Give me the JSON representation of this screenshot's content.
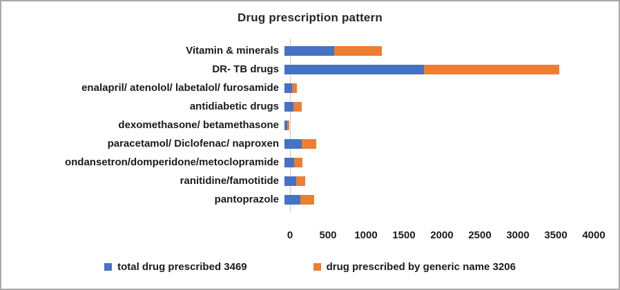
{
  "chart_data": {
    "type": "bar",
    "orientation": "horizontal",
    "stacked": true,
    "title": "Drug prescription pattern",
    "categories": [
      "Vitamin & minerals",
      "DR- TB drugs",
      "enalapril/ atenolol/ labetalol/ furosamide",
      "antidiabetic drugs",
      "dexomethasone/ betamethasone",
      "paracetamol/ Diclofenac/ naproxen",
      "ondansetron/domperidone/metoclopramide",
      "ranitidine/famotitide",
      "pantoprazole"
    ],
    "series": [
      {
        "name": "total drug prescribed 3469",
        "color": "#4472C4",
        "values": [
          650,
          1840,
          104,
          120,
          35,
          230,
          130,
          150,
          210
        ]
      },
      {
        "name": "drug prescribed by generic name 3206",
        "color": "#ED7D31",
        "values": [
          630,
          1781,
          60,
          110,
          25,
          190,
          110,
          120,
          180
        ]
      }
    ],
    "xlabel": "",
    "ylabel": "",
    "xlim": [
      0,
      4000
    ],
    "x_ticks": [
      0,
      500,
      1000,
      1500,
      2000,
      2500,
      3000,
      3500,
      4000
    ],
    "grid": false,
    "legend_position": "bottom"
  }
}
